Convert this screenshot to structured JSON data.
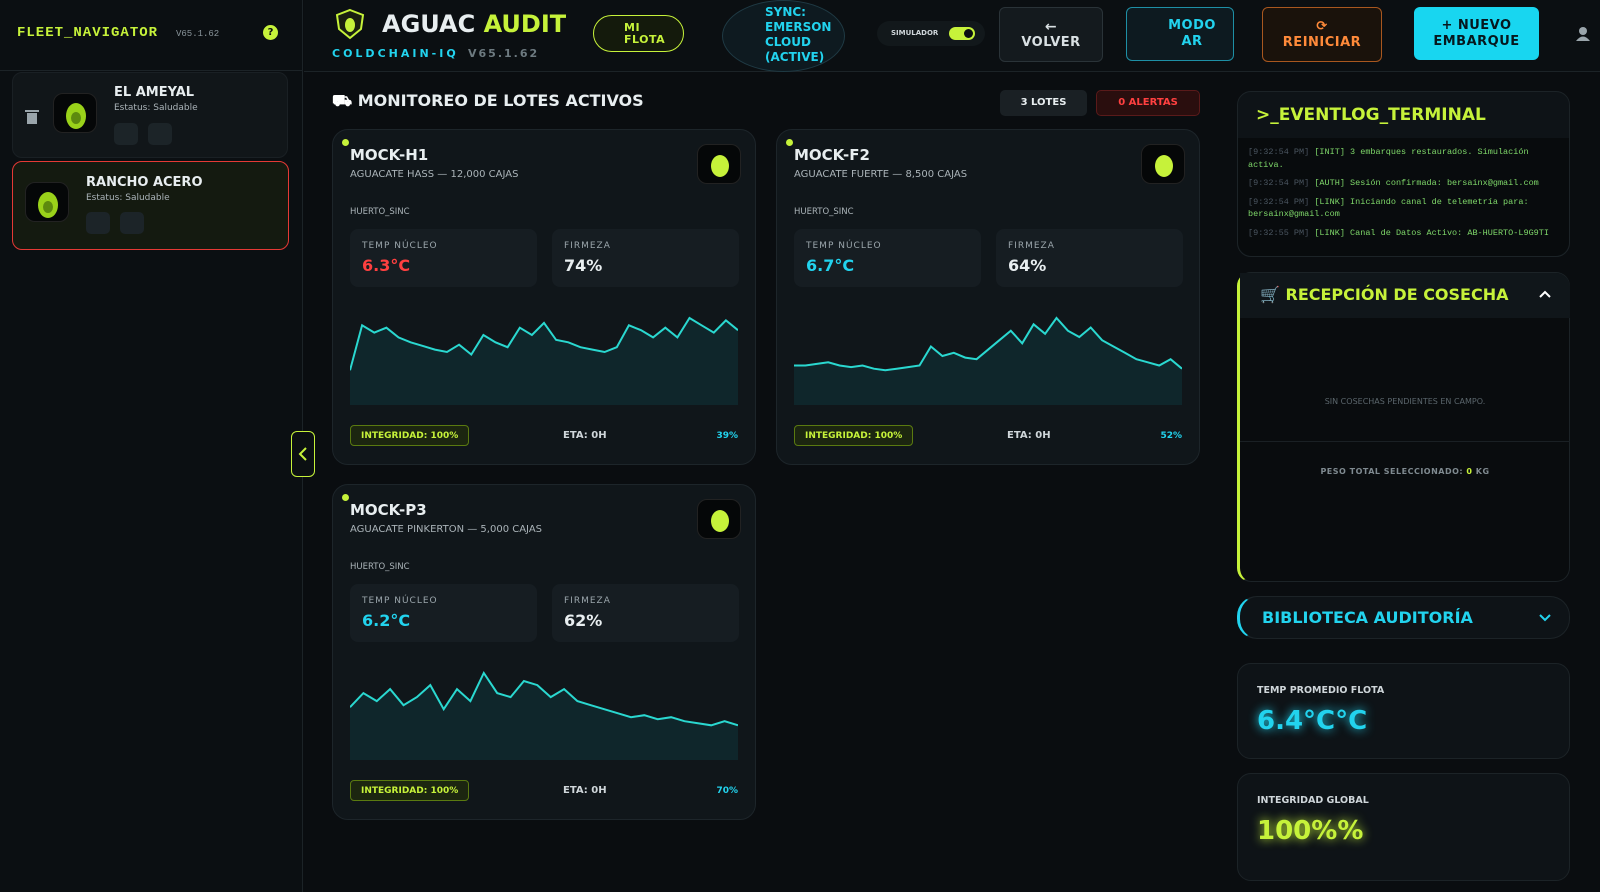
{
  "sidebar": {
    "title": "FLEET_NAVIGATOR",
    "version": "V65.1.62",
    "help": "?",
    "ranches": [
      {
        "name": "EL AMEYAL",
        "status": "Estatus: Saludable"
      },
      {
        "name": "RANCHO ACERO",
        "status": "Estatus: Saludable"
      }
    ]
  },
  "header": {
    "brand_left": "AGUAC",
    "brand_right": "AUDIT",
    "subtitle": "COLDCHAIN-IQ",
    "version": "V65.1.62",
    "fleet_button": "MI FLOTA",
    "sync": "SYNC: EMERSON CLOUD (ACTIVE)",
    "simulator": "SIMULADOR",
    "back_button": "VOLVER",
    "ar_button": "MODO AR",
    "reset_button": "REINICIAR",
    "new_button": "+ NUEVO EMBARQUE"
  },
  "main": {
    "title": "MONITOREO DE LOTES ACTIVOS",
    "lots_badge": "3 LOTES",
    "alerts_badge": "0 ALERTAS",
    "cards": [
      {
        "id": "MOCK-H1",
        "description": "AGUACATE HASS — 12,000 CAJAS",
        "location": "HUERTO_SINC",
        "temp_label": "TEMP NÚCLEO",
        "temp": "6.3°C",
        "temp_color": "#ff4040",
        "firmness_label": "FIRMEZA",
        "firmness": "74%",
        "integrity": "INTEGRIDAD: 100%",
        "eta": "ETA: 0H",
        "progress": "39%",
        "sparkline": [
          35,
          72,
          66,
          70,
          62,
          58,
          55,
          52,
          50,
          56,
          48,
          64,
          58,
          54,
          70,
          64,
          74,
          60,
          58,
          54,
          52,
          50,
          54,
          72,
          68,
          62,
          70,
          62,
          78,
          72,
          66,
          76,
          68
        ]
      },
      {
        "id": "MOCK-F2",
        "description": "AGUACATE FUERTE — 8,500 CAJAS",
        "location": "HUERTO_SINC",
        "temp_label": "TEMP NÚCLEO",
        "temp": "6.7°C",
        "temp_color": "#22d3ee",
        "firmness_label": "FIRMEZA",
        "firmness": "64%",
        "integrity": "INTEGRIDAD: 100%",
        "eta": "ETA: 0H",
        "progress": "52%",
        "sparkline": [
          50,
          50,
          51,
          52,
          50,
          49,
          50,
          48,
          47,
          48,
          49,
          50,
          62,
          56,
          58,
          55,
          54,
          60,
          66,
          72,
          64,
          76,
          70,
          80,
          72,
          68,
          74,
          66,
          62,
          58,
          54,
          52,
          50,
          54,
          48
        ]
      },
      {
        "id": "MOCK-P3",
        "description": "AGUACATE PINKERTON — 5,000 CAJAS",
        "location": "HUERTO_SINC",
        "temp_label": "TEMP NÚCLEO",
        "temp": "6.2°C",
        "temp_color": "#22d3ee",
        "firmness_label": "FIRMEZA",
        "firmness": "62%",
        "integrity": "INTEGRIDAD: 100%",
        "eta": "ETA: 0H",
        "progress": "70%",
        "sparkline": [
          55,
          62,
          58,
          64,
          56,
          60,
          66,
          54,
          64,
          58,
          72,
          62,
          60,
          68,
          66,
          60,
          64,
          58,
          56,
          54,
          52,
          50,
          51,
          49,
          50,
          48,
          47,
          46,
          48,
          46
        ]
      }
    ]
  },
  "right_panel": {
    "terminal_title": ">_EVENTLOG_TERMINAL",
    "logs": [
      {
        "time": "[9:32:54 PM]",
        "text": "[INIT] 3 embarques restaurados. Simulación activa."
      },
      {
        "time": "[9:32:54 PM]",
        "text": "[AUTH] Sesión confirmada: bersainx@gmail.com"
      },
      {
        "time": "[9:32:54 PM]",
        "text": "[LINK] Iniciando canal de telemetría para: bersainx@gmail.com"
      },
      {
        "time": "[9:32:55 PM]",
        "text": "[LINK] Canal de Datos Activo: AB-HUERTO-L9G9TI"
      }
    ],
    "reception_title": "RECEPCIÓN DE COSECHA",
    "reception_empty": "SIN COSECHAS PENDIENTES EN CAMPO.",
    "weight_label": "PESO TOTAL SELECCIONADO:",
    "weight_value": "0",
    "weight_unit": "KG",
    "library_title": "BIBLIOTECA AUDITORÍA",
    "stats": [
      {
        "label": "TEMP PROMEDIO FLOTA",
        "value": "6.4°C°C",
        "color": "#22d3ee"
      },
      {
        "label": "INTEGRIDAD GLOBAL",
        "value": "100%%",
        "color": "#c6f23a"
      }
    ]
  }
}
